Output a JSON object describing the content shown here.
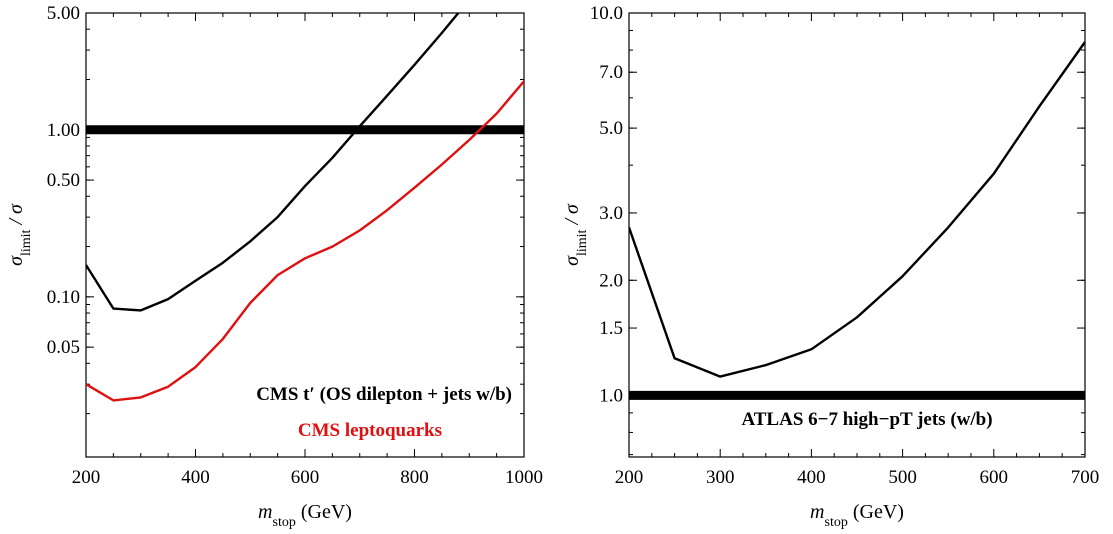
{
  "chart_data": [
    {
      "type": "line",
      "yscale": "log",
      "xlabel": {
        "main": "m",
        "sub": "stop",
        "rest": " (GeV)"
      },
      "ylabel": {
        "sigma": "σ",
        "sub": "limit",
        "rest": " / σ"
      },
      "xlim": [
        200,
        1000
      ],
      "ylim": [
        0.011,
        5.0
      ],
      "x_ticks": [
        200,
        400,
        600,
        800,
        1000
      ],
      "x_ticklabels": [
        "200",
        "400",
        "600",
        "800",
        "1000"
      ],
      "y_ticks": [
        0.05,
        0.1,
        0.5,
        1.0,
        5.0
      ],
      "y_ticklabels": [
        "0.05",
        "0.10",
        "0.50",
        "1.00",
        "5.00"
      ],
      "reference_line": {
        "y": 1.0,
        "color": "#000000"
      },
      "series": [
        {
          "color": "#000000",
          "x": [
            200,
            250,
            300,
            350,
            400,
            450,
            500,
            550,
            600,
            650,
            700,
            750,
            800,
            850,
            880
          ],
          "y": [
            0.155,
            0.085,
            0.083,
            0.097,
            0.125,
            0.16,
            0.215,
            0.3,
            0.46,
            0.68,
            1.05,
            1.6,
            2.45,
            3.8,
            5.0
          ]
        },
        {
          "color": "#e01010",
          "x": [
            200,
            250,
            300,
            350,
            400,
            450,
            500,
            550,
            600,
            650,
            700,
            750,
            800,
            850,
            900,
            950,
            1000
          ],
          "y": [
            0.03,
            0.024,
            0.025,
            0.029,
            0.038,
            0.056,
            0.092,
            0.135,
            0.17,
            0.2,
            0.25,
            0.33,
            0.45,
            0.62,
            0.87,
            1.25,
            1.95
          ]
        }
      ],
      "annotations": [
        {
          "text": "CMS t′ (OS dilepton + jets w/b)",
          "color": "#000000"
        },
        {
          "text": "CMS leptoquarks",
          "color": "#e01010"
        }
      ]
    },
    {
      "type": "line",
      "yscale": "log",
      "xlabel": {
        "main": "m",
        "sub": "stop",
        "rest": " (GeV)"
      },
      "ylabel": {
        "sigma": "σ",
        "sub": "limit",
        "rest": " / σ"
      },
      "xlim": [
        200,
        700
      ],
      "ylim": [
        0.69,
        10.0
      ],
      "x_ticks": [
        200,
        300,
        400,
        500,
        600,
        700
      ],
      "x_ticklabels": [
        "200",
        "300",
        "400",
        "500",
        "600",
        "700"
      ],
      "y_ticks": [
        1.0,
        1.5,
        2.0,
        3.0,
        5.0,
        7.0,
        10.0
      ],
      "y_ticklabels": [
        "1.0",
        "1.5",
        "2.0",
        "3.0",
        "5.0",
        "7.0",
        "10.0"
      ],
      "reference_line": {
        "y": 1.0,
        "color": "#000000"
      },
      "series": [
        {
          "color": "#000000",
          "x": [
            200,
            250,
            300,
            350,
            400,
            450,
            500,
            550,
            600,
            650,
            700
          ],
          "y": [
            2.75,
            1.25,
            1.12,
            1.2,
            1.32,
            1.6,
            2.05,
            2.75,
            3.8,
            5.7,
            8.4
          ]
        }
      ],
      "annotations": [
        {
          "text": "ATLAS 6−7 high−pT jets (w/b)",
          "color": "#000000"
        }
      ]
    }
  ]
}
